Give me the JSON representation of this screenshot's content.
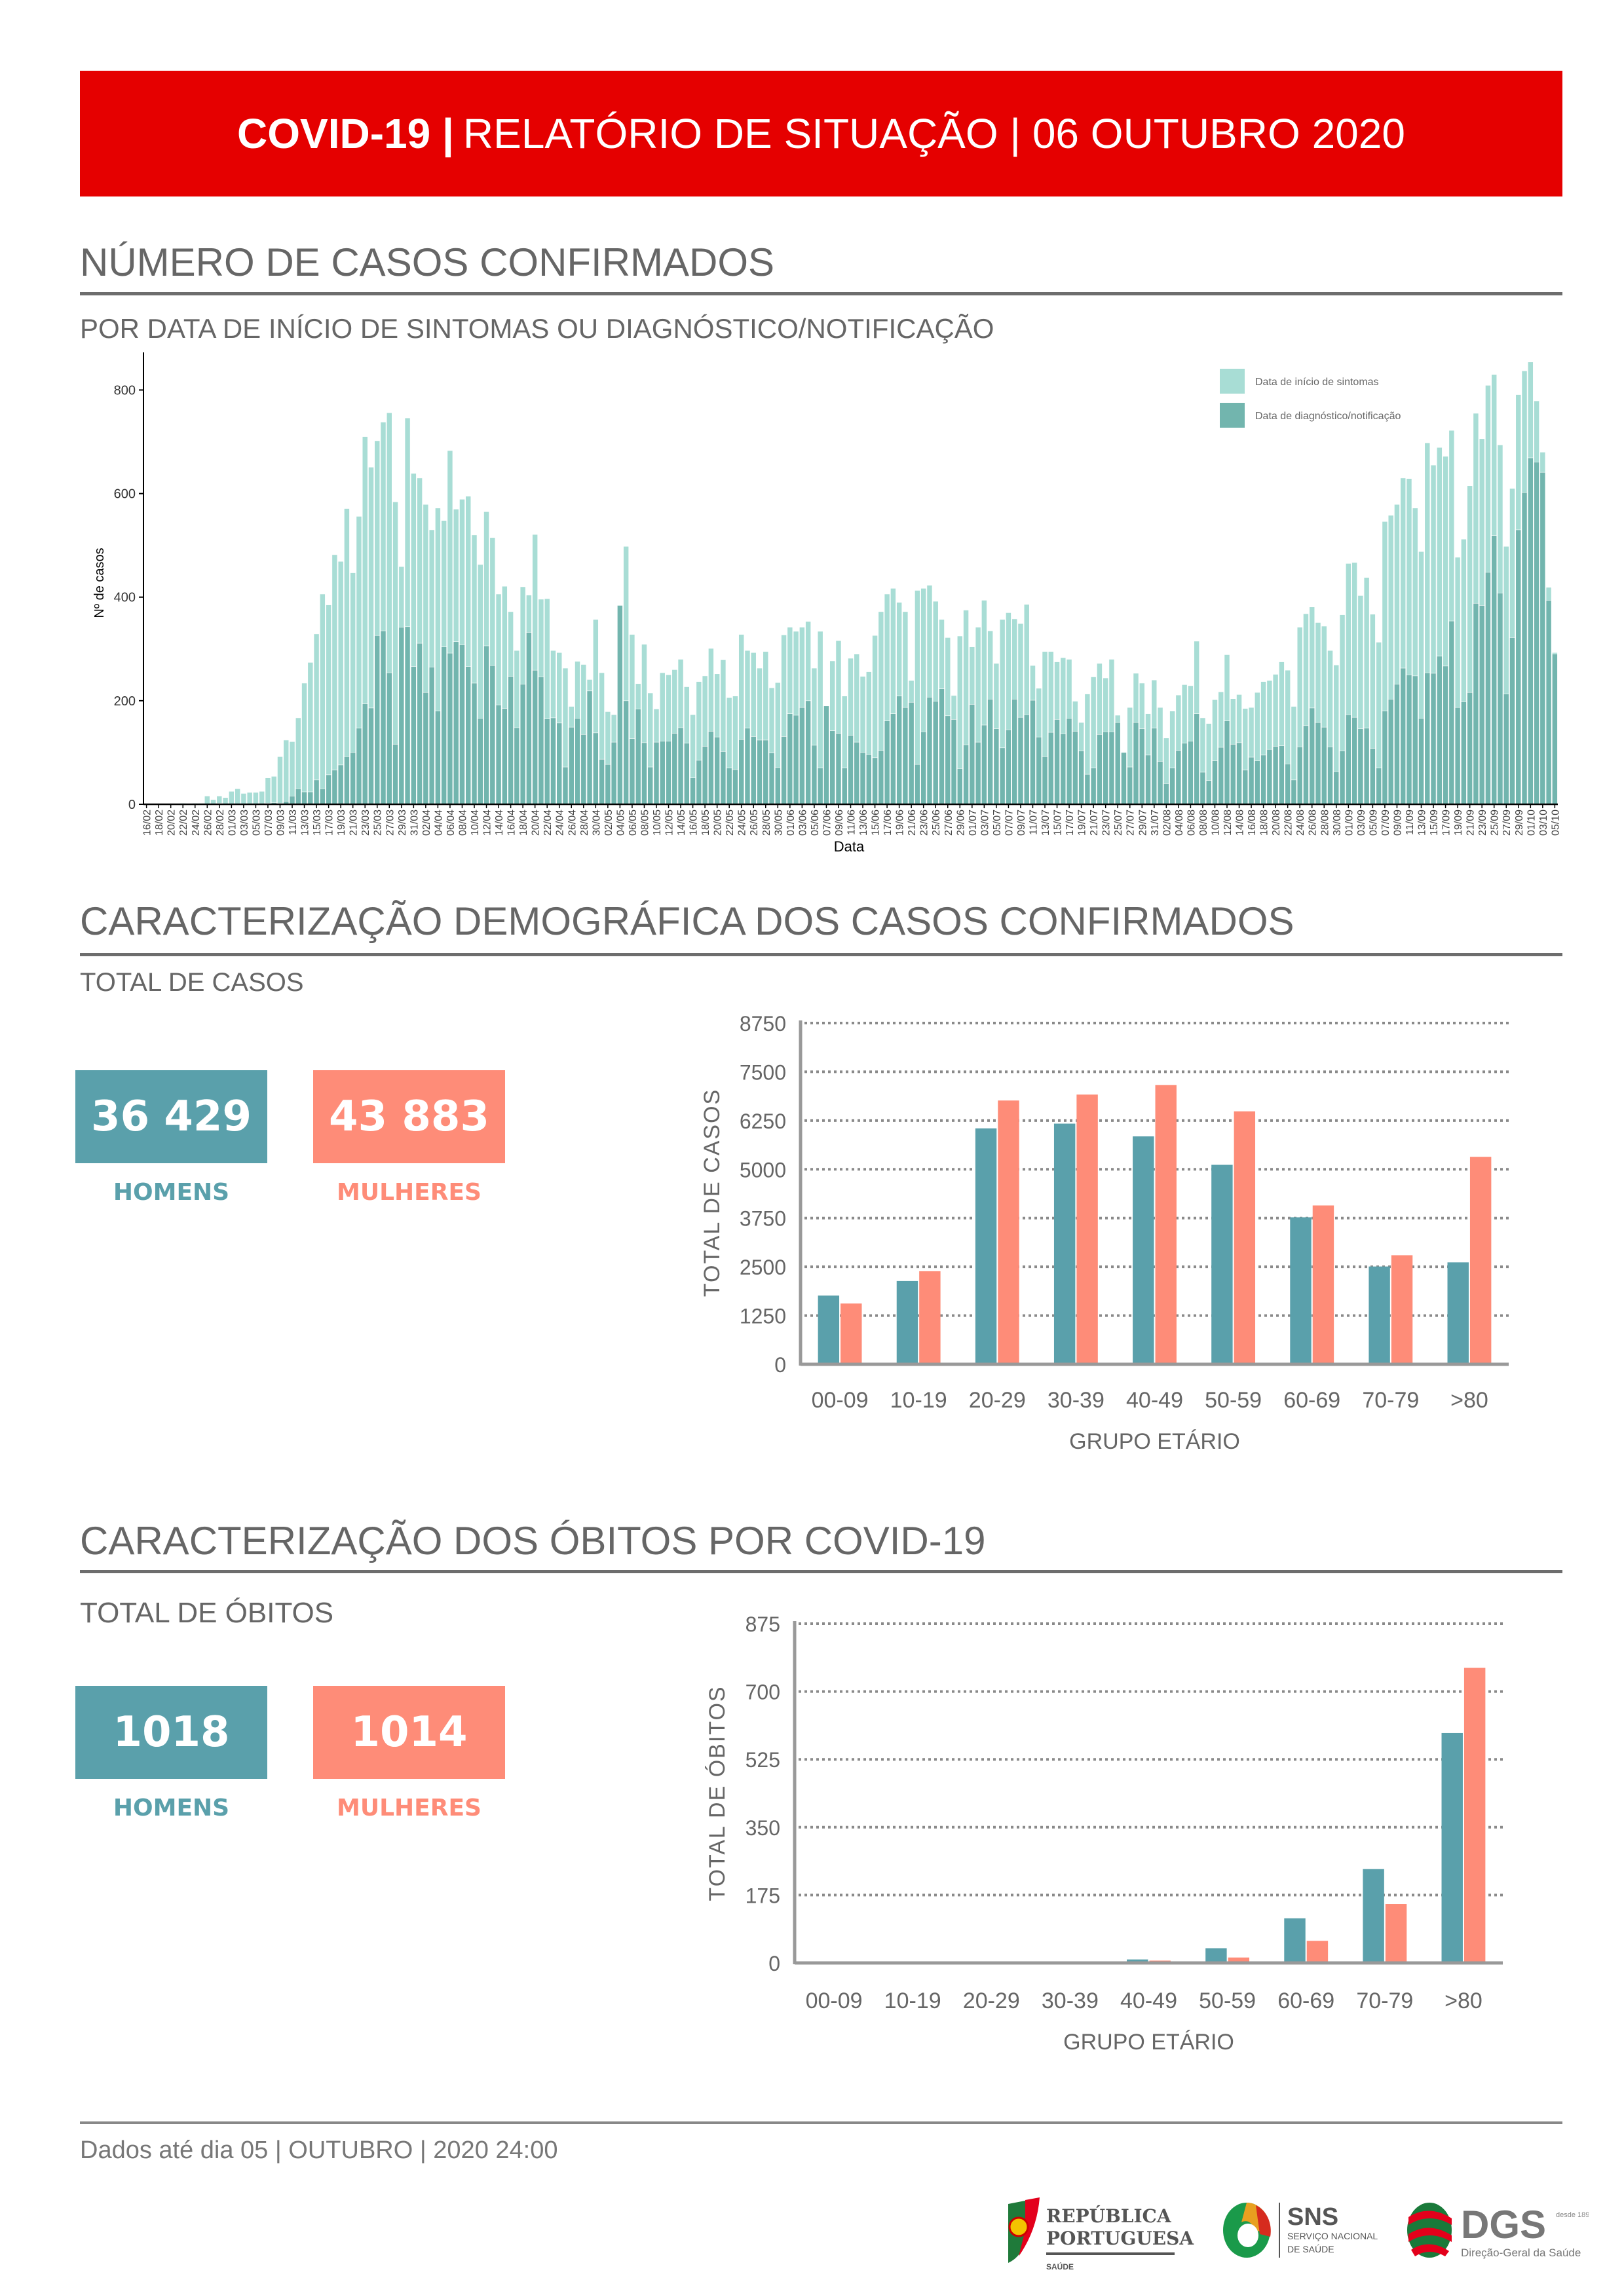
{
  "header": {
    "title_bold": "COVID-19 |",
    "title_rest": "RELATÓRIO DE SITUAÇÃO | 06 OUTUBRO 2020"
  },
  "section1": {
    "title": "NÚMERO DE CASOS CONFIRMADOS",
    "subtitle": "POR DATA DE INÍCIO DE SINTOMAS OU DIAGNÓSTICO/NOTIFICAÇÃO"
  },
  "section2": {
    "title": "CARACTERIZAÇÃO DEMOGRÁFICA DOS CASOS CONFIRMADOS",
    "subtitle": "TOTAL DE CASOS",
    "men_value": "36 429",
    "women_value": "43 883",
    "men_label": "HOMENS",
    "women_label": "MULHERES"
  },
  "section3": {
    "title": "CARACTERIZAÇÃO DOS ÓBITOS POR COVID-19",
    "subtitle": "TOTAL DE ÓBITOS",
    "men_value": "1018",
    "women_value": "1014",
    "men_label": "HOMENS",
    "women_label": "MULHERES"
  },
  "footer": {
    "text": "Dados até dia 05 | OUTUBRO | 2020 24:00"
  },
  "logos": {
    "republica": [
      "REPÚBLICA",
      "PORTUGUESA",
      "SAÚDE"
    ],
    "sns": [
      "SNS",
      "SERVIÇO NACIONAL",
      "DE SAÚDE"
    ],
    "dgs": [
      "DGS",
      "desde 1899",
      "Direção-Geral da Saúde"
    ]
  },
  "colors": {
    "header": "#e50000",
    "men": "#5aa0ab",
    "women": "#fe8c78",
    "onset": "#a8ddd5",
    "diagnosis": "#72b5ae"
  },
  "chart_data": [
    {
      "type": "bar",
      "title": "",
      "xlabel": "Data",
      "ylabel": "Nº de casos",
      "ylim": [
        0,
        860
      ],
      "y_ticks": [
        0,
        200,
        400,
        600,
        800
      ],
      "legend_position": "top-right",
      "x_start": "16/02",
      "x_end": "05/10",
      "x_tick_labels": [
        "16/02",
        "18/02",
        "20/02",
        "22/02",
        "24/02",
        "26/02",
        "28/02",
        "01/03",
        "03/03",
        "05/03",
        "07/03",
        "09/03",
        "11/03",
        "13/03",
        "15/03",
        "17/03",
        "19/03",
        "21/03",
        "23/03",
        "25/03",
        "27/03",
        "29/03",
        "31/03",
        "02/04",
        "04/04",
        "06/04",
        "08/04",
        "10/04",
        "12/04",
        "14/04",
        "16/04",
        "18/04",
        "20/04",
        "22/04",
        "24/04",
        "26/04",
        "28/04",
        "30/04",
        "02/05",
        "04/05",
        "06/05",
        "08/05",
        "10/05",
        "12/05",
        "14/05",
        "16/05",
        "18/05",
        "20/05",
        "22/05",
        "24/05",
        "26/05",
        "28/05",
        "30/05",
        "01/06",
        "03/06",
        "05/06",
        "07/06",
        "09/06",
        "11/06",
        "13/06",
        "15/06",
        "17/06",
        "19/06",
        "21/06",
        "23/06",
        "25/06",
        "27/06",
        "29/06",
        "01/07",
        "03/07",
        "05/07",
        "07/07",
        "09/07",
        "11/07",
        "13/07",
        "15/07",
        "17/07",
        "19/07",
        "21/07",
        "23/07",
        "25/07",
        "27/07",
        "29/07",
        "31/07",
        "02/08",
        "04/08",
        "06/08",
        "08/08",
        "10/08",
        "12/08",
        "14/08",
        "16/08",
        "18/08",
        "20/08",
        "22/08",
        "24/08",
        "26/08",
        "28/08",
        "30/08",
        "01/09",
        "03/09",
        "05/09",
        "07/09",
        "09/09",
        "11/09",
        "13/09",
        "15/09",
        "17/09",
        "19/09",
        "21/09",
        "23/09",
        "25/09",
        "27/09",
        "29/09",
        "01/10",
        "03/10",
        "05/10"
      ],
      "series": [
        {
          "name": "Data de início de sintomas",
          "values": [
            0,
            0,
            1,
            1,
            1,
            1,
            2,
            1,
            2,
            2,
            16,
            9,
            16,
            13,
            25,
            30,
            21,
            23,
            23,
            25,
            51,
            54,
            92,
            124,
            121,
            167,
            234,
            274,
            329,
            406,
            385,
            482,
            469,
            571,
            447,
            556,
            710,
            651,
            702,
            738,
            756,
            584,
            459,
            746,
            639,
            630,
            579,
            530,
            572,
            548,
            683,
            570,
            589,
            595,
            520,
            463,
            565,
            515,
            406,
            421,
            372,
            297,
            420,
            404,
            521,
            396,
            397,
            297,
            293,
            263,
            189,
            276,
            270,
            241,
            357,
            254,
            179,
            173,
            240,
            498,
            328,
            233,
            309,
            215,
            184,
            254,
            250,
            260,
            280,
            227,
            173,
            237,
            248,
            301,
            252,
            279,
            206,
            209,
            328,
            297,
            293,
            263,
            295,
            225,
            235,
            327,
            342,
            334,
            342,
            353,
            263,
            334,
            190,
            277,
            316,
            209,
            282,
            290,
            247,
            256,
            326,
            372,
            406,
            417,
            390,
            372,
            239,
            413,
            417,
            423,
            392,
            357,
            322,
            210,
            325,
            375,
            304,
            342,
            394,
            335,
            272,
            357,
            370,
            358,
            349,
            386,
            268,
            224,
            295,
            295,
            275,
            283,
            280,
            199,
            158,
            213,
            246,
            272,
            244,
            280,
            172,
            99,
            187,
            253,
            234,
            175,
            240,
            187,
            128,
            180,
            211,
            231,
            229,
            315,
            167,
            156,
            202,
            217,
            289,
            204,
            212,
            185,
            187,
            216,
            237,
            239,
            251,
            275,
            259,
            189,
            342,
            368,
            381,
            351,
            344,
            297,
            269,
            366,
            465,
            467,
            403,
            438,
            367,
            313,
            546,
            558,
            579,
            630,
            629,
            572,
            488,
            698,
            655,
            689,
            672,
            722,
            477,
            512,
            615,
            755,
            706,
            809,
            830,
            694,
            498,
            610,
            791,
            837,
            854,
            779,
            680,
            419,
            293
          ]
        },
        {
          "name": "Data de diagnóstico/notificação",
          "values": [
            0,
            0,
            0,
            0,
            0,
            0,
            0,
            0,
            0,
            0,
            0,
            0,
            2,
            0,
            0,
            0,
            0,
            1,
            0,
            1,
            2,
            3,
            2,
            6,
            16,
            30,
            24,
            24,
            47,
            30,
            57,
            66,
            76,
            92,
            100,
            147,
            194,
            186,
            326,
            335,
            254,
            116,
            342,
            343,
            266,
            311,
            216,
            265,
            180,
            304,
            292,
            314,
            308,
            266,
            234,
            166,
            306,
            268,
            192,
            185,
            247,
            148,
            232,
            332,
            259,
            246,
            165,
            167,
            157,
            72,
            149,
            166,
            135,
            219,
            138,
            87,
            77,
            120,
            384,
            200,
            127,
            184,
            119,
            72,
            120,
            122,
            122,
            137,
            148,
            118,
            51,
            85,
            112,
            141,
            130,
            102,
            70,
            67,
            125,
            147,
            131,
            124,
            124,
            99,
            71,
            131,
            175,
            172,
            187,
            200,
            114,
            70,
            190,
            142,
            137,
            70,
            133,
            120,
            100,
            96,
            90,
            104,
            161,
            175,
            209,
            187,
            197,
            77,
            140,
            207,
            199,
            223,
            171,
            164,
            69,
            115,
            193,
            120,
            153,
            203,
            146,
            109,
            144,
            203,
            168,
            173,
            201,
            130,
            92,
            139,
            164,
            136,
            166,
            141,
            103,
            58,
            70,
            135,
            140,
            140,
            158,
            100,
            72,
            158,
            146,
            95,
            147,
            83,
            40,
            70,
            104,
            118,
            122,
            175,
            62,
            46,
            84,
            110,
            161,
            116,
            119,
            66,
            91,
            84,
            95,
            106,
            112,
            113,
            78,
            47,
            111,
            152,
            186,
            158,
            149,
            111,
            63,
            103,
            173,
            168,
            146,
            147,
            108,
            70,
            180,
            203,
            232,
            263,
            250,
            248,
            166,
            254,
            253,
            286,
            267,
            354,
            187,
            198,
            216,
            388,
            384,
            448,
            519,
            408,
            213,
            322,
            530,
            602,
            669,
            661,
            641,
            394,
            290
          ]
        }
      ]
    },
    {
      "type": "bar",
      "title": "",
      "xlabel": "GRUPO ETÁRIO",
      "ylabel": "TOTAL DE CASOS",
      "ylim": [
        0,
        8750
      ],
      "y_ticks": [
        0,
        1250,
        2500,
        3750,
        5000,
        6250,
        7500,
        8750
      ],
      "grid": true,
      "categories": [
        "00-09",
        "10-19",
        "20-29",
        "30-39",
        "40-49",
        "50-59",
        "60-69",
        "70-79",
        ">80"
      ],
      "series": [
        {
          "name": "Homens",
          "values": [
            1763,
            2135,
            6050,
            6171,
            5844,
            5115,
            3770,
            2508,
            2614
          ]
        },
        {
          "name": "Mulheres",
          "values": [
            1558,
            2386,
            6764,
            6916,
            7159,
            6486,
            4073,
            2797,
            5320
          ]
        }
      ]
    },
    {
      "type": "bar",
      "title": "",
      "xlabel": "GRUPO ETÁRIO",
      "ylabel": "TOTAL DE ÓBITOS",
      "ylim": [
        0,
        875
      ],
      "y_ticks": [
        0,
        175,
        350,
        525,
        700,
        875
      ],
      "grid": true,
      "categories": [
        "00-09",
        "10-19",
        "20-29",
        "30-39",
        "40-49",
        "50-59",
        "60-69",
        "70-79",
        ">80"
      ],
      "series": [
        {
          "name": "Homens",
          "values": [
            0,
            0,
            0,
            0,
            9,
            38,
            115,
            242,
            593
          ]
        },
        {
          "name": "Mulheres",
          "values": [
            0,
            0,
            0,
            0,
            6,
            14,
            57,
            152,
            761
          ]
        }
      ]
    }
  ]
}
